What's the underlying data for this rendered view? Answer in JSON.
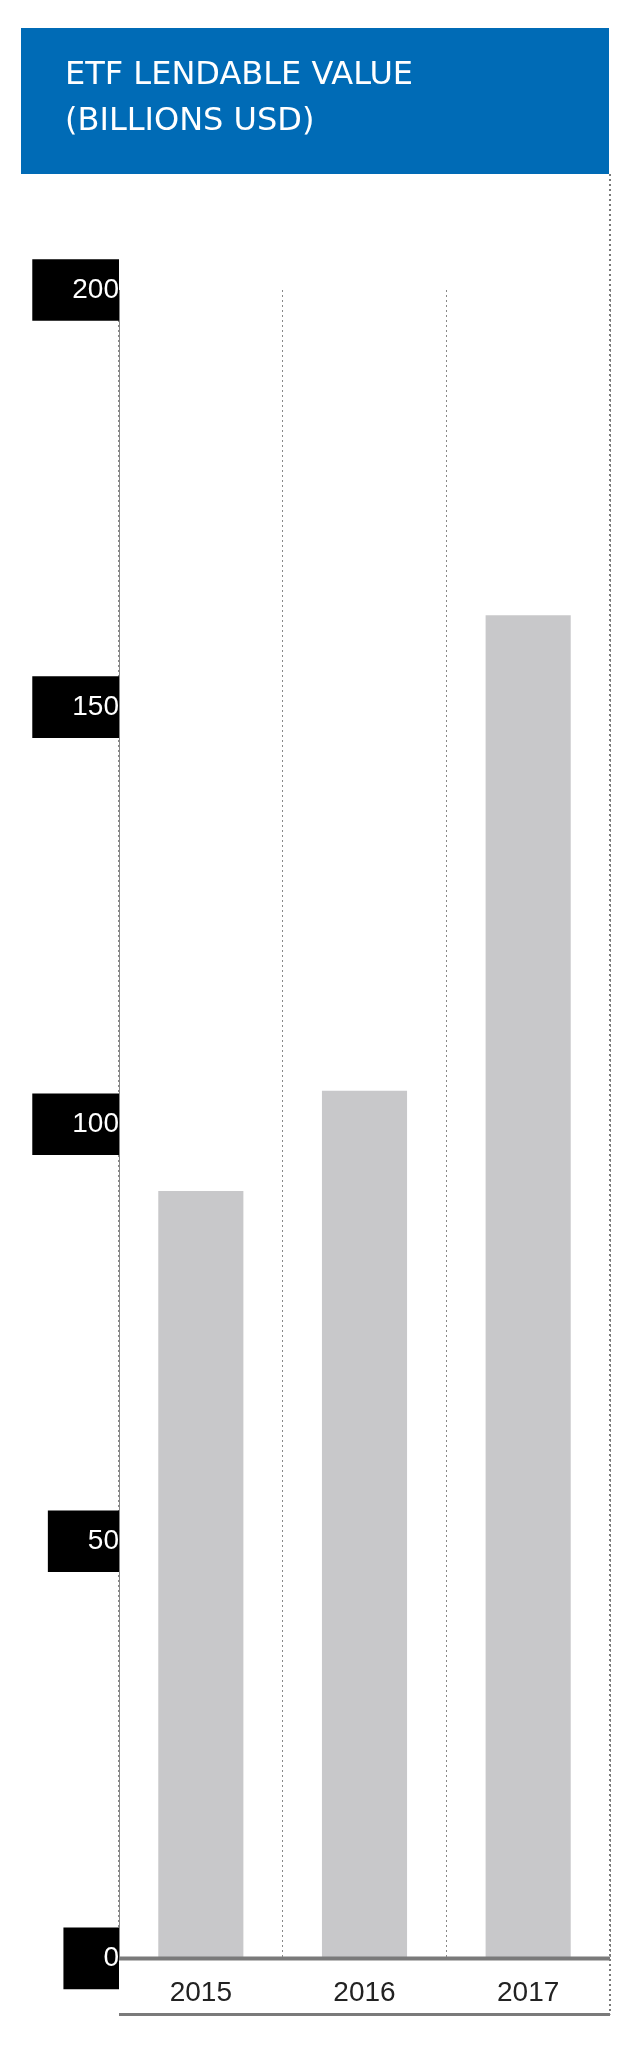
{
  "chart_data": {
    "type": "bar",
    "title": "ETF LENDABLE VALUE\n(BILLIONS USD)",
    "categories": [
      "2015",
      "2016",
      "2017"
    ],
    "values": [
      92,
      104,
      161
    ],
    "color": "#c8c8ca",
    "ylim": [
      0,
      200
    ],
    "yticks": [
      0,
      50,
      100,
      150,
      200
    ],
    "grid": "x",
    "legend": false
  }
}
